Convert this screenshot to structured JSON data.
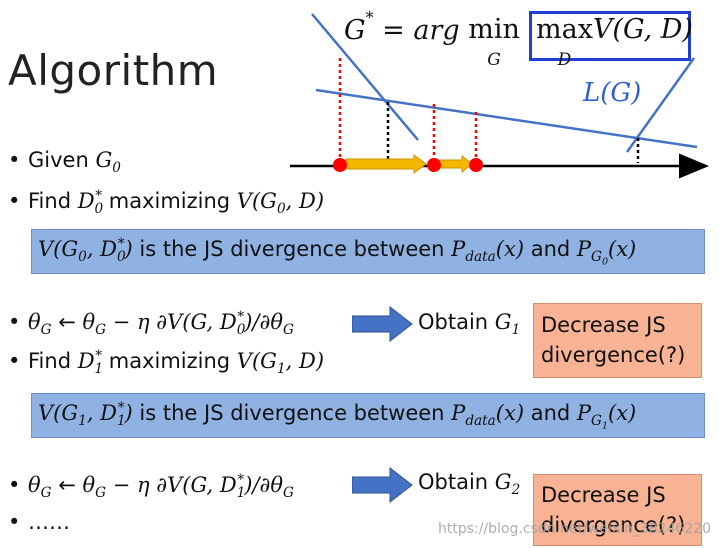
{
  "slide": {
    "title": "Algorithm",
    "formula": {
      "lhs": "G",
      "lhs_sup": "*",
      "eq": " = ",
      "argword": "arg ",
      "min": "min",
      "min_sub": "G",
      "max": "max",
      "max_sub": "D",
      "vterm": "V(G, D)"
    },
    "curve_label": "L(G)",
    "bullets": {
      "b1_text": "Given ",
      "b1_math": "G",
      "b1_sub": "0",
      "b2_text": "Find ",
      "b2_math": "D",
      "b2_sub": "0",
      "b2_sup": "*",
      "b2_text2": " maximizing ",
      "b2_math2": "V(G",
      "b2_sub2": "0",
      "b2_math3": ", D)",
      "b3_math": "θ",
      "b3_sub": "G",
      "b3_arrow": " ← ",
      "b3_math2": "θ",
      "b3_sub2": "G",
      "b3_rest": " − η ∂V(G, D",
      "b3_sub3": "0",
      "b3_sup3": "*",
      "b3_rest2": ")/∂θ",
      "b3_sub4": "G",
      "b4_text": "Find ",
      "b4_math": "D",
      "b4_sub": "1",
      "b4_sup": "*",
      "b4_text2": " maximizing ",
      "b4_math2": "V(G",
      "b4_sub2": "1",
      "b4_math3": ", D)",
      "b5_math": "θ",
      "b5_sub": "G",
      "b5_arrow": " ← ",
      "b5_math2": "θ",
      "b5_sub2": "G",
      "b5_rest": " − η ∂V(G, D",
      "b5_sub3": "1",
      "b5_sup3": "*",
      "b5_rest2": ")/∂θ",
      "b5_sub4": "G",
      "b6_text": "……"
    },
    "obtain1": {
      "text": "Obtain ",
      "math": "G",
      "sub": "1"
    },
    "obtain2": {
      "text": "Obtain ",
      "math": "G",
      "sub": "2"
    },
    "box1": {
      "m1": "V(G",
      "m1_sub": "0",
      "m2": ", D",
      "m2_sub": "0",
      "m2_sup": "*",
      "m3": ")",
      "t1": " is the JS divergence between ",
      "p1": "P",
      "p1_sub": "data",
      "p1_rest": "(x)",
      "t2": " and ",
      "p2": "P",
      "p2_sub": "G",
      "p2_subsub": "0",
      "p2_rest": "(x)"
    },
    "box2": {
      "m1": "V(G",
      "m1_sub": "1",
      "m2": ", D",
      "m2_sub": "1",
      "m2_sup": "*",
      "m3": ")",
      "t1": " is the JS divergence between ",
      "p1": "P",
      "p1_sub": "data",
      "p1_rest": "(x)",
      "t2": " and ",
      "p2": "P",
      "p2_sub": "G",
      "p2_subsub": "1",
      "p2_rest": "(x)"
    },
    "orange1": {
      "line1": "Decrease JS",
      "line2": "divergence(?)"
    },
    "orange2": {
      "line1": "Decrease JS",
      "line2": "divergence(?)"
    },
    "watermark": "https://blog.csdn.net/weixin_38246220",
    "colors": {
      "blue_box": "#8fb2e3",
      "orange_box": "#f7b394",
      "accent_blue": "#1f3fd1",
      "curve_blue": "#4472c4",
      "red_point": "#ff0000",
      "yellow_arrow": "#f5b800"
    }
  }
}
